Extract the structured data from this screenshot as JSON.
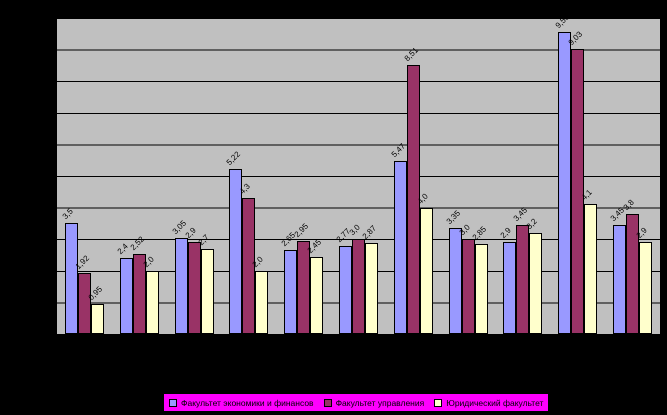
{
  "chart_data": {
    "type": "bar",
    "background_color": "#000000",
    "plot_background_color": "#C0C0C0",
    "gridline_color": "#000000",
    "legend_background_color": "#FF00FF",
    "legend_position": "bottom",
    "grid_on": true,
    "ylim": [
      0,
      10
    ],
    "gridline_interval": 1,
    "groups_count": 11,
    "series": [
      {
        "key": "economics",
        "name": "Факультет экономики и финансов",
        "color": "#9999FF",
        "values": [
          3.5,
          2.4,
          3.05,
          5.22,
          2.65,
          2.77,
          5.47,
          3.35,
          2.9,
          9.56,
          3.45
        ],
        "labels": [
          "3,5",
          "2,4",
          "3,05",
          "5,22",
          "2,65",
          "2,77",
          "5,47",
          "3,35",
          "2,9",
          "9,56",
          "3,45"
        ]
      },
      {
        "key": "management",
        "name": "Факультет управления",
        "color": "#993366",
        "values": [
          1.92,
          2.52,
          2.9,
          4.3,
          2.95,
          3.0,
          8.51,
          3.0,
          3.45,
          9.03,
          3.8
        ],
        "labels": [
          "1,92",
          "2,52",
          "2,9",
          "4,3",
          "2,95",
          "3,0",
          "8,51",
          "3,0",
          "3,45",
          "9,03",
          "3,8"
        ]
      },
      {
        "key": "law",
        "name": "Юридический факультет",
        "color": "#FFFFCC",
        "values": [
          0.95,
          2.0,
          2.7,
          2.0,
          2.45,
          2.87,
          4.0,
          2.85,
          3.2,
          4.1,
          2.9
        ],
        "labels": [
          "0,95",
          "2,0",
          "2,7",
          "2,0",
          "2,45",
          "2,87",
          "4,0",
          "2,85",
          "3,2",
          "4,1",
          "2,9"
        ]
      }
    ]
  }
}
